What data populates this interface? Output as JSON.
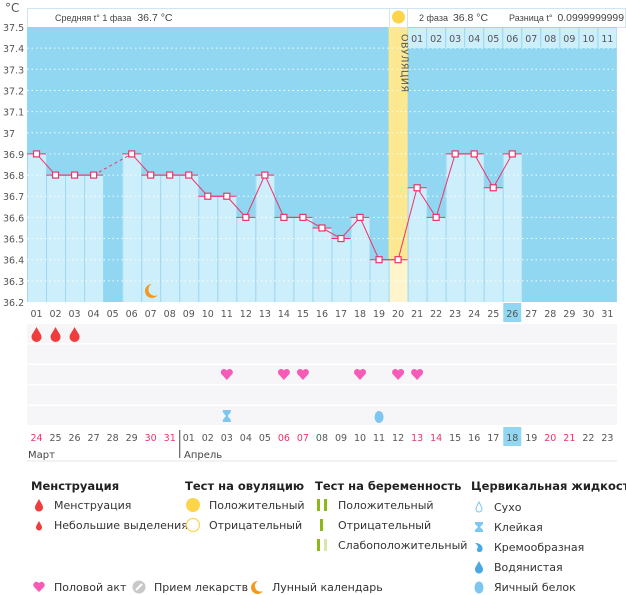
{
  "header": {
    "unit": "°C",
    "phase1_label": "Средняя t° 1 фаза",
    "phase1_value": "36.7 °C",
    "phase2_label": "2 фаза",
    "phase2_value": "36.8 °C",
    "diff_label": "Разница t°",
    "diff_value": "0.0999999999",
    "ovulation_label": "ОВУЛЯЦИЯ"
  },
  "chart_data": {
    "type": "bar+line",
    "ylabel": "°C",
    "ylim": [
      36.2,
      37.5
    ],
    "yticks": [
      "37.5",
      "37.4",
      "37.3",
      "37.2",
      "37.1",
      "37",
      "36.9",
      "36.8",
      "36.7",
      "36.6",
      "36.5",
      "36.4",
      "36.3",
      "36.2"
    ],
    "grid": true,
    "cycle_days": [
      "01",
      "02",
      "03",
      "04",
      "05",
      "06",
      "07",
      "08",
      "09",
      "10",
      "11",
      "12",
      "13",
      "14",
      "15",
      "16",
      "17",
      "18",
      "19",
      "20",
      "21",
      "22",
      "23",
      "24",
      "25",
      "26",
      "27",
      "28",
      "29",
      "30",
      "31"
    ],
    "temperatures": [
      36.9,
      36.8,
      36.8,
      36.8,
      null,
      36.9,
      36.8,
      36.8,
      36.8,
      36.7,
      36.7,
      36.6,
      36.8,
      36.6,
      36.6,
      36.55,
      36.5,
      36.6,
      36.4,
      36.4,
      36.74,
      36.6,
      36.9,
      36.9,
      36.74,
      36.9
    ],
    "ovulation_day": 20,
    "current_day": 26,
    "next_cycle_days": [
      "01",
      "02",
      "03",
      "04",
      "05",
      "06",
      "07",
      "08",
      "09",
      "10",
      "11"
    ],
    "moon_day": 7,
    "calendar_dates": [
      "24",
      "25",
      "26",
      "27",
      "28",
      "29",
      "30",
      "31",
      "01",
      "02",
      "03",
      "04",
      "05",
      "06",
      "07",
      "08",
      "09",
      "10",
      "11",
      "12",
      "13",
      "14",
      "15",
      "16",
      "17",
      "18",
      "19",
      "20",
      "21",
      "22",
      "23"
    ],
    "weekend_dates_idx": [
      0,
      6,
      7,
      13,
      14,
      20,
      21,
      27,
      28
    ],
    "today_date": "18",
    "months": [
      "Март",
      "Апрель"
    ],
    "menstruation_days": [
      1,
      2,
      3
    ],
    "intercourse_days": [
      11,
      14,
      15,
      18,
      20,
      21
    ],
    "cervical_sticky_days": [
      11
    ],
    "cervical_eggwhite_days": [
      19
    ],
    "colors": {
      "bg": "#92d7f1",
      "bar": "#cdeefb",
      "line": "#f0326a",
      "ovulation": "#fbe891",
      "weekend": "#f0326a",
      "today": "#92d7f1"
    }
  },
  "legend": {
    "menstruation": {
      "title": "Менструация",
      "items": [
        "Менструация",
        "Небольшие выделения"
      ]
    },
    "ovulation_test": {
      "title": "Тест на овуляцию",
      "items": [
        "Положительный",
        "Отрицательный"
      ]
    },
    "pregnancy_test": {
      "title": "Тест на беременность",
      "items": [
        "Положительный",
        "Отрицательный",
        "Слабоположительный"
      ]
    },
    "cervical": {
      "title": "Цервикальная жидкость",
      "items": [
        "Сухо",
        "Клейкая",
        "Кремообразная",
        "Водянистая",
        "Яичный белок"
      ]
    },
    "other": [
      "Половой акт",
      "Прием лекарств",
      "Лунный календарь"
    ]
  }
}
